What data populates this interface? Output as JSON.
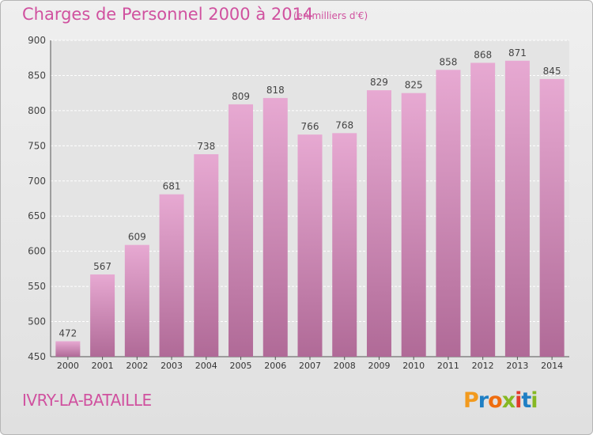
{
  "chart_data": {
    "type": "bar",
    "title": "Charges de Personnel 2000 à 2014",
    "subtitle": "(en milliers d'€)",
    "categories": [
      "2000",
      "2001",
      "2002",
      "2003",
      "2004",
      "2005",
      "2006",
      "2007",
      "2008",
      "2009",
      "2010",
      "2011",
      "2012",
      "2013",
      "2014"
    ],
    "values": [
      472,
      567,
      609,
      681,
      738,
      809,
      818,
      766,
      768,
      829,
      825,
      858,
      868,
      871,
      845
    ],
    "ylim": [
      450,
      900
    ],
    "yticks": [
      450,
      500,
      550,
      600,
      650,
      700,
      750,
      800,
      850,
      900
    ],
    "grid": true,
    "bar_color_top": "#e7a9d2",
    "bar_color_bottom": "#b06a97"
  },
  "footer": {
    "location": "IVRY-LA-BATAILLE",
    "logo_text": "Proxiti"
  },
  "colors": {
    "title": "#d0519f",
    "logo": [
      "#f29a1e",
      "#1f7fc4",
      "#ef6d0f",
      "#86b823",
      "#e23b2c",
      "#1f7fc4",
      "#86b823"
    ]
  }
}
